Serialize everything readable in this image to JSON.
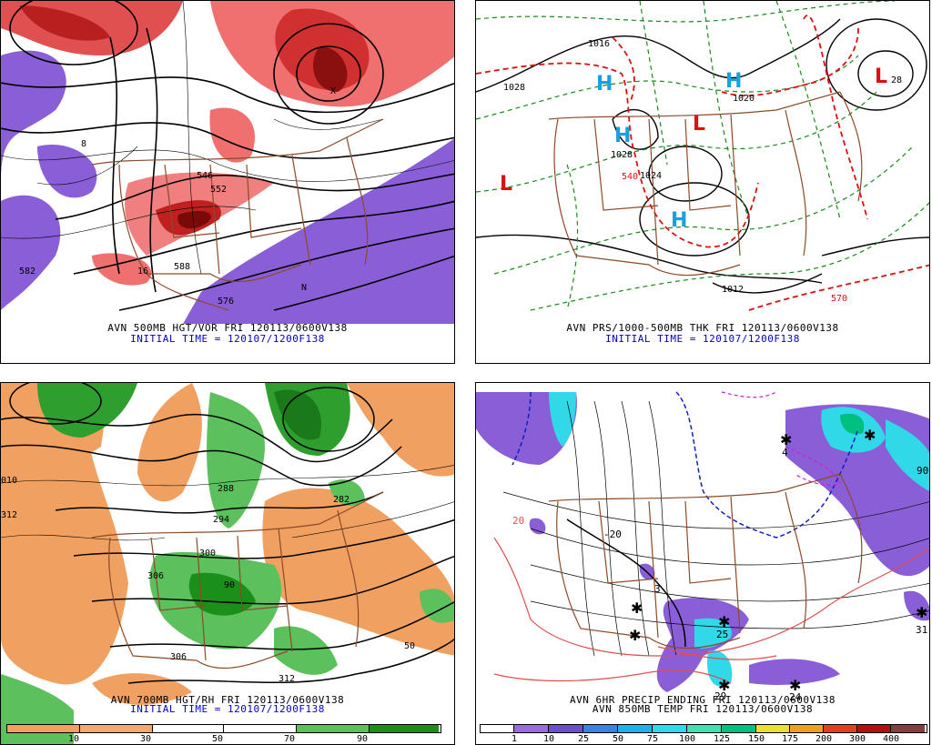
{
  "panels": {
    "top_left": {
      "caption_line1": "AVN 500MB HGT/VOR FRI 120113/0600V138",
      "caption_line2": "INITIAL TIME = 120107/1200F138",
      "labels": [
        "546",
        "552",
        "576",
        "582",
        "588",
        "8",
        "16",
        "N",
        "X"
      ]
    },
    "top_right": {
      "caption_line1": "AVN PRS/1000-500MB THK FRI 120113/0600V138",
      "caption_line2": "INITIAL TIME = 120107/1200F138",
      "labels": [
        "1028",
        "1020",
        "1028",
        "1012",
        "1024",
        "1016",
        "570",
        "540",
        "28"
      ],
      "pressure_centers": [
        "H",
        "H",
        "H",
        "H",
        "L",
        "L",
        "L"
      ]
    },
    "bottom_left": {
      "caption_line1": "AVN 700MB HGT/RH FRI 120113/0600V138",
      "caption_line2": "INITIAL TIME = 120107/1200F138",
      "labels": [
        "282",
        "288",
        "294",
        "300",
        "306",
        "312",
        "306",
        "50",
        "90",
        "010",
        "312"
      ],
      "color_scale_labels": [
        "10",
        "30",
        "50",
        "70",
        "90"
      ],
      "color_scale_colors": [
        "#f0a060",
        "#f3a870",
        "#ffffff",
        "#ffffff",
        "#5cc05c",
        "#1a8f1a"
      ]
    },
    "bottom_right": {
      "caption_line1": "AVN 6HR PRECIP ENDING FRI 120113/0600V138",
      "caption_line2": "AVN 850MB TEMP FRI 120113/0600V138",
      "labels": [
        "25",
        "29",
        "24",
        "31",
        "3",
        "4",
        "90",
        "-20",
        "20"
      ],
      "color_scale_labels": [
        "1",
        "10",
        "25",
        "50",
        "75",
        "100",
        "125",
        "150",
        "175",
        "200",
        "300",
        "400"
      ],
      "color_scale_colors": [
        "#ffffff",
        "#9a6ae0",
        "#6a4fd0",
        "#3b82e6",
        "#20b0f0",
        "#30d8e8",
        "#40e0b0",
        "#00c080",
        "#e8e030",
        "#f0a020",
        "#e04020",
        "#b01010",
        "#804040"
      ]
    }
  }
}
